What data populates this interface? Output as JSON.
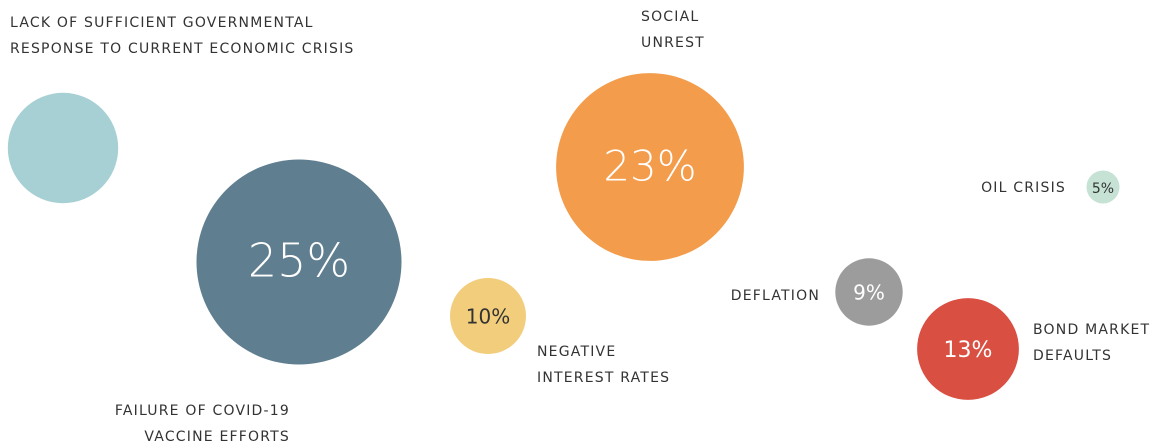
{
  "chart_data": {
    "type": "bubble",
    "categories": [
      [
        "LACK OF SUFFICIENT GOVERNMENTAL",
        "RESPONSE TO CURRENT ECONOMIC CRISIS"
      ],
      [
        "FAILURE OF COVID-19",
        "VACCINE EFFORTS"
      ],
      [
        "NEGATIVE",
        "INTEREST RATES"
      ],
      [
        "SOCIAL",
        "UNREST"
      ],
      [
        "DEFLATION"
      ],
      [
        "BOND MARKET",
        "DEFAULTS"
      ],
      [
        "OIL CRISIS"
      ]
    ],
    "values": [
      14,
      25,
      10,
      23,
      9,
      13,
      5
    ],
    "value_labels": [
      null,
      "25%",
      "10%",
      "23%",
      "9%",
      "13%",
      "5%"
    ],
    "colors": [
      "#a6d0d3",
      "#5f7e8f",
      "#f2cd7c",
      "#f39c4b",
      "#9c9c9c",
      "#d94f42",
      "#c5e2d4"
    ]
  }
}
